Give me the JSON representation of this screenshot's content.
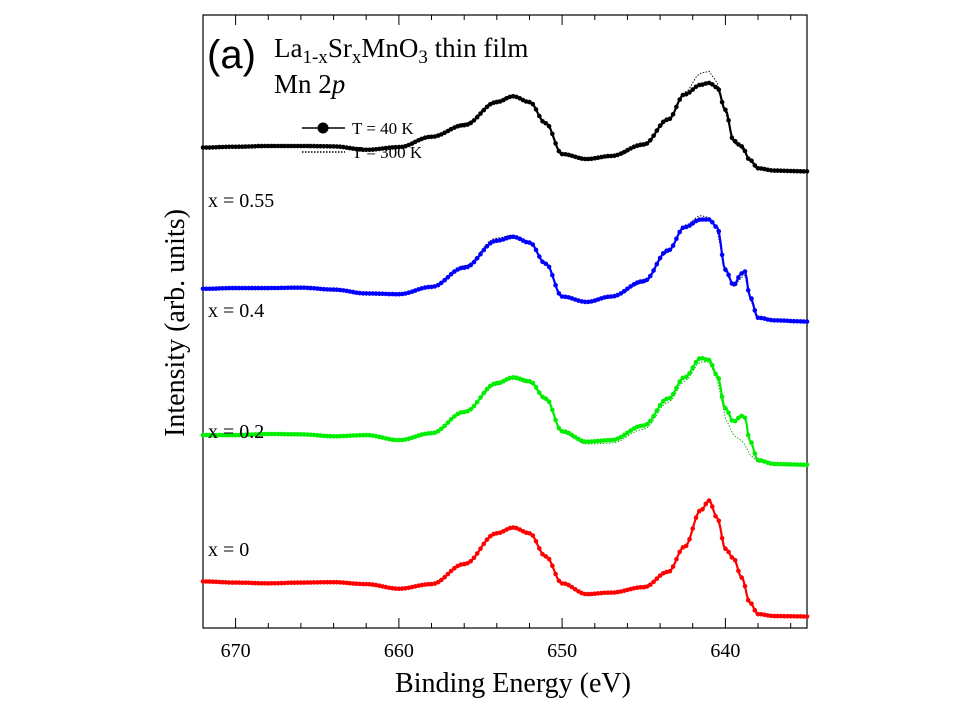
{
  "chart_data": {
    "type": "line",
    "panel_label": "(a)",
    "title_line1": {
      "base": "La",
      "sub1": "1-x",
      "mid": "Sr",
      "sub2": "x",
      "tail": "MnO",
      "sub3": "3",
      "end": " thin film"
    },
    "title_line2": {
      "base": "Mn 2",
      "ital": "p"
    },
    "xlabel": "Binding Energy (eV)",
    "ylabel": "Intensity (arb. units)",
    "xlim": [
      672,
      635
    ],
    "x_ticks": [
      670,
      660,
      650,
      640
    ],
    "x_tick_labels": [
      "670",
      "660",
      "650",
      "640"
    ],
    "y_axis": "offset, no tick labels",
    "legend": {
      "position": "top-left",
      "entries": [
        {
          "label": "T = 40 K",
          "style": "solid line with filled circles"
        },
        {
          "label": "T = 300 K",
          "style": "dotted line"
        }
      ]
    },
    "series": [
      {
        "name": "x = 0.55",
        "color": "#000000",
        "x": [
          672,
          670,
          668,
          666,
          664,
          662,
          660,
          658,
          656,
          654,
          653,
          652,
          651,
          650,
          648.5,
          647,
          645,
          643.5,
          642.5,
          641.5,
          641,
          640.5,
          640,
          639.5,
          639,
          638.5,
          638,
          637,
          635
        ],
        "values_40K": [
          0.92,
          0.94,
          0.96,
          0.96,
          0.95,
          0.86,
          0.93,
          1.2,
          1.5,
          2.1,
          2.25,
          2.1,
          1.55,
          0.75,
          0.62,
          0.7,
          1.0,
          1.65,
          2.3,
          2.55,
          2.6,
          2.48,
          1.9,
          1.1,
          0.95,
          0.6,
          0.38,
          0.32,
          0.3
        ],
        "values_300K": [
          0.92,
          0.94,
          0.96,
          0.96,
          0.95,
          0.86,
          0.93,
          1.22,
          1.55,
          2.15,
          2.28,
          2.12,
          1.55,
          0.75,
          0.6,
          0.66,
          0.95,
          1.6,
          2.35,
          2.85,
          2.9,
          2.6,
          1.85,
          1.05,
          0.9,
          0.58,
          0.38,
          0.32,
          0.3
        ]
      },
      {
        "name": "x = 0.4",
        "color": "#0000ff",
        "x": [
          672,
          670,
          668,
          666,
          664,
          662,
          660,
          658,
          656,
          654,
          653,
          652,
          651,
          650,
          648.5,
          647,
          645,
          643.5,
          642.5,
          641.5,
          641,
          640.5,
          640,
          639.5,
          639,
          638.8,
          638.5,
          638,
          637,
          635
        ],
        "values_40K": [
          1.0,
          1.02,
          1.02,
          1.03,
          0.98,
          0.88,
          0.86,
          1.05,
          1.55,
          2.25,
          2.35,
          2.2,
          1.65,
          0.8,
          0.66,
          0.8,
          1.2,
          2.0,
          2.6,
          2.8,
          2.8,
          2.6,
          1.5,
          1.1,
          1.4,
          1.45,
          0.8,
          0.25,
          0.18,
          0.15
        ],
        "values_300K": [
          1.0,
          1.02,
          1.02,
          1.03,
          0.98,
          0.88,
          0.86,
          1.07,
          1.6,
          2.32,
          2.4,
          2.22,
          1.65,
          0.8,
          0.64,
          0.76,
          1.15,
          1.95,
          2.65,
          2.9,
          2.85,
          2.5,
          1.45,
          1.05,
          1.3,
          1.35,
          0.75,
          0.25,
          0.18,
          0.15
        ]
      },
      {
        "name": "x = 0.2",
        "color": "#00ee00",
        "x": [
          672,
          670,
          668,
          666,
          664,
          662,
          660,
          658,
          656,
          654,
          653,
          652,
          651,
          650,
          648.5,
          647,
          645,
          643.5,
          642.5,
          641.5,
          641,
          640.5,
          640,
          639.5,
          639,
          638.8,
          638.5,
          638,
          637,
          635
        ],
        "values_40K": [
          0.95,
          0.95,
          0.98,
          0.97,
          0.92,
          0.95,
          0.82,
          1.0,
          1.55,
          2.3,
          2.45,
          2.35,
          1.9,
          1.05,
          0.78,
          0.82,
          1.2,
          1.9,
          2.45,
          2.95,
          2.9,
          2.5,
          1.65,
          1.3,
          1.45,
          1.4,
          0.8,
          0.3,
          0.2,
          0.18
        ],
        "values_300K": [
          0.95,
          0.95,
          0.98,
          0.97,
          0.92,
          0.95,
          0.82,
          0.98,
          1.52,
          2.25,
          2.4,
          2.3,
          1.85,
          1.0,
          0.72,
          0.74,
          1.1,
          1.8,
          2.35,
          2.85,
          2.85,
          2.4,
          1.4,
          0.95,
          0.8,
          0.7,
          0.45,
          0.25,
          0.2,
          0.18
        ]
      },
      {
        "name": "x = 0",
        "color": "#ff0000",
        "x": [
          672,
          670,
          668,
          666,
          664,
          662,
          660,
          658,
          656,
          654,
          653,
          652,
          651,
          650,
          648.5,
          647,
          645,
          643.5,
          642.5,
          641.5,
          641,
          640.5,
          640,
          639.5,
          639,
          638.5,
          638,
          637,
          635
        ],
        "values_40K": [
          0.95,
          0.92,
          0.9,
          0.92,
          0.93,
          0.88,
          0.76,
          0.88,
          1.4,
          2.2,
          2.35,
          2.2,
          1.6,
          0.9,
          0.62,
          0.66,
          0.8,
          1.2,
          1.85,
          2.8,
          3.05,
          2.6,
          1.8,
          1.55,
          1.05,
          0.4,
          0.1,
          0.05,
          0.04
        ],
        "values_300K": [
          0.95,
          0.92,
          0.9,
          0.92,
          0.93,
          0.88,
          0.76,
          0.88,
          1.4,
          2.2,
          2.35,
          2.2,
          1.6,
          0.9,
          0.62,
          0.66,
          0.8,
          1.2,
          1.85,
          2.8,
          3.05,
          2.6,
          1.8,
          1.55,
          1.05,
          0.4,
          0.1,
          0.05,
          0.04
        ]
      }
    ],
    "offsets": [
      11.3,
      7.55,
      3.8,
      0
    ]
  }
}
